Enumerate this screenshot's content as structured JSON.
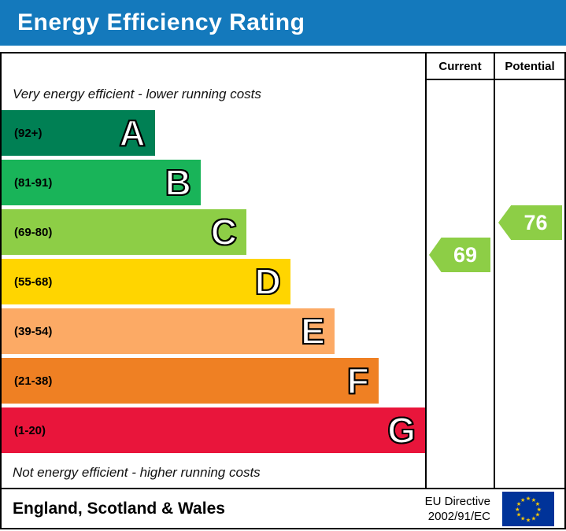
{
  "banner": {
    "title": "Energy Efficiency Rating",
    "bg_color": "#1479bc"
  },
  "table": {
    "current_label": "Current",
    "potential_label": "Potential",
    "top_note": "Very energy efficient - lower running costs",
    "bottom_note": "Not energy efficient - higher running costs"
  },
  "bands": [
    {
      "letter": "A",
      "range": "(92+)",
      "color": "#008054",
      "width_pct": 36.2
    },
    {
      "letter": "B",
      "range": "(81-91)",
      "color": "#19b459",
      "width_pct": 47.0
    },
    {
      "letter": "C",
      "range": "(69-80)",
      "color": "#8dce46",
      "width_pct": 57.8
    },
    {
      "letter": "D",
      "range": "(55-68)",
      "color": "#ffd500",
      "width_pct": 68.2
    },
    {
      "letter": "E",
      "range": "(39-54)",
      "color": "#fcaa65",
      "width_pct": 78.6
    },
    {
      "letter": "F",
      "range": "(21-38)",
      "color": "#ef8023",
      "width_pct": 89.0
    },
    {
      "letter": "G",
      "range": "(1-20)",
      "color": "#e9153b",
      "width_pct": 100
    }
  ],
  "ratings": {
    "current": {
      "value": "69",
      "color": "#8dce46"
    },
    "potential": {
      "value": "76",
      "color": "#8dce46"
    }
  },
  "footer": {
    "region": "England, Scotland & Wales",
    "directive_line1": "EU Directive",
    "directive_line2": "2002/91/EC",
    "flag_colors": {
      "field": "#003399",
      "stars": "#ffcc00"
    }
  },
  "chart_data": {
    "type": "bar",
    "title": "Energy Efficiency Rating",
    "categories": [
      "A",
      "B",
      "C",
      "D",
      "E",
      "F",
      "G"
    ],
    "band_ranges": [
      "92+",
      "81-91",
      "69-80",
      "55-68",
      "39-54",
      "21-38",
      "1-20"
    ],
    "band_colors": [
      "#008054",
      "#19b459",
      "#8dce46",
      "#ffd500",
      "#fcaa65",
      "#ef8023",
      "#e9153b"
    ],
    "values": [
      36.2,
      47.0,
      57.8,
      68.2,
      78.6,
      89.0,
      100
    ],
    "value_unit": "percent-of-max-bar-width",
    "current": 69,
    "potential": 76,
    "notes": [
      "Very energy efficient - lower running costs",
      "Not energy efficient - higher running costs"
    ],
    "legend_position": "none",
    "grid": false
  }
}
